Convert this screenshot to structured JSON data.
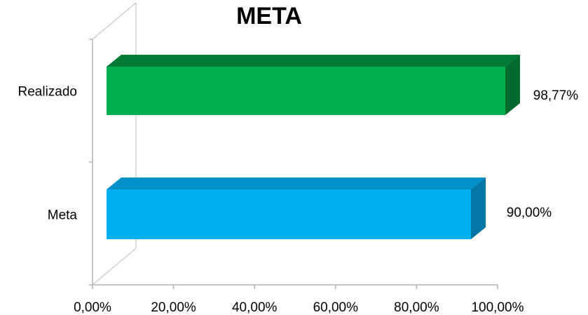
{
  "chart_data": {
    "type": "bar",
    "orientation": "horizontal",
    "style": "3d",
    "title": "META",
    "categories": [
      "Meta",
      "Realizado"
    ],
    "values": [
      90.0,
      98.77
    ],
    "data_labels": [
      "90,00%",
      "98,77%"
    ],
    "bar_colors": [
      "#00b0f0",
      "#00b050"
    ],
    "bar_top_colors": [
      "#0290c6",
      "#007a35"
    ],
    "bar_side_colors": [
      "#0276a4",
      "#006b2c"
    ],
    "xlim": [
      0,
      100
    ],
    "x_ticks": [
      0,
      20,
      40,
      60,
      80,
      100
    ],
    "x_tick_labels": [
      "0,00%",
      "20,00%",
      "40,00%",
      "60,00%",
      "80,00%",
      "100,00%"
    ],
    "grid": false,
    "legend": "none"
  }
}
